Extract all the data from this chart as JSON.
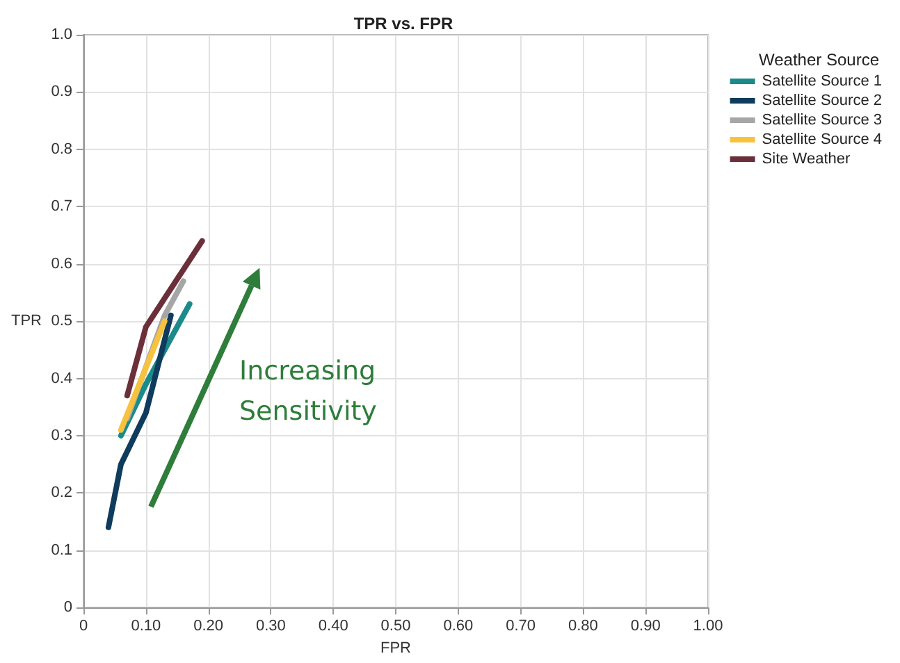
{
  "chart_data": {
    "type": "line",
    "title": "TPR vs. FPR",
    "xlabel": "FPR",
    "ylabel": "TPR",
    "legend_title": "Weather Source",
    "series": [
      {
        "name": "Satellite Source 1",
        "color": "#1a8a8a",
        "x": [
          0.06,
          0.1,
          0.17
        ],
        "values": [
          0.3,
          0.39,
          0.53
        ]
      },
      {
        "name": "Satellite Source 2",
        "color": "#0f3b5c",
        "x": [
          0.04,
          0.06,
          0.1,
          0.14
        ],
        "values": [
          0.14,
          0.25,
          0.34,
          0.51
        ]
      },
      {
        "name": "Satellite Source 3",
        "color": "#a6a6a6",
        "x": [
          0.07,
          0.13,
          0.16
        ],
        "values": [
          0.33,
          0.51,
          0.57
        ]
      },
      {
        "name": "Satellite Source 4",
        "color": "#f7c23e",
        "x": [
          0.06,
          0.13
        ],
        "values": [
          0.31,
          0.5
        ]
      },
      {
        "name": "Site Weather",
        "color": "#6b2f3a",
        "x": [
          0.07,
          0.1,
          0.19
        ],
        "values": [
          0.37,
          0.49,
          0.64
        ]
      }
    ],
    "annotations": [
      "Increasing Sensitivity"
    ],
    "xlim": [
      0,
      1
    ],
    "xticks": [
      0,
      {
        "value": 0.1,
        "label": "0.10"
      },
      {
        "value": 0.2,
        "label": "0.20"
      },
      {
        "value": 0.3,
        "label": "0.30"
      },
      {
        "value": 0.4,
        "label": "0.40"
      },
      {
        "value": 0.5,
        "label": "0.50"
      },
      {
        "value": 0.6,
        "label": "0.60"
      },
      {
        "value": 0.7,
        "label": "0.70"
      },
      {
        "value": 0.8,
        "label": "0.80"
      },
      {
        "value": 0.9,
        "label": "0.90"
      },
      {
        "value": 1,
        "label": "1.00"
      }
    ],
    "ylim": [
      0,
      1
    ],
    "yticks": [
      0,
      0.1,
      0.2,
      0.3,
      0.4,
      0.5,
      0.6,
      0.7,
      0.8,
      0.9,
      {
        "value": 1,
        "label": "1.0"
      }
    ],
    "grid": true,
    "legend": "top right",
    "marker": "none",
    "line_style": "solid"
  }
}
